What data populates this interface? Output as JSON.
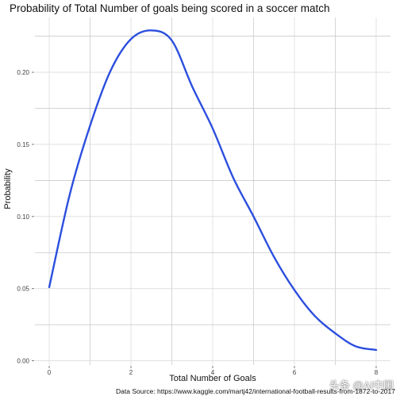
{
  "chart_data": {
    "type": "line",
    "title": "Probability of Total Number of goals being scored in a soccer match",
    "xlabel": "Total Number of Goals",
    "ylabel": "Probability",
    "xlim": [
      -0.35,
      8.35
    ],
    "ylim": [
      -0.003,
      0.238
    ],
    "x_ticks": [
      0,
      2,
      4,
      6,
      8
    ],
    "x_tick_labels": [
      "0",
      "2",
      "4",
      "6",
      "8"
    ],
    "y_ticks": [
      0.0,
      0.05,
      0.1,
      0.15,
      0.2
    ],
    "y_tick_labels": [
      "0.00",
      "0.05",
      "0.10",
      "0.15",
      "0.20"
    ],
    "grid": true,
    "line_color": "#2c4fde",
    "series": [
      {
        "x": [
          0,
          0.5,
          1,
          1.5,
          2,
          2.5,
          3,
          3.5,
          4,
          4.5,
          5,
          5.5,
          6,
          6.5,
          7,
          7.5,
          8
        ],
        "values": [
          0.051,
          0.115,
          0.163,
          0.201,
          0.223,
          0.229,
          0.222,
          0.19,
          0.161,
          0.127,
          0.1,
          0.072,
          0.049,
          0.031,
          0.019,
          0.01,
          0.0075
        ]
      }
    ]
  },
  "caption": "Data Source: https://www.kaggle.com/martj42/international-football-results-from-1872-to-2017",
  "watermark": "头条 @AI中国"
}
